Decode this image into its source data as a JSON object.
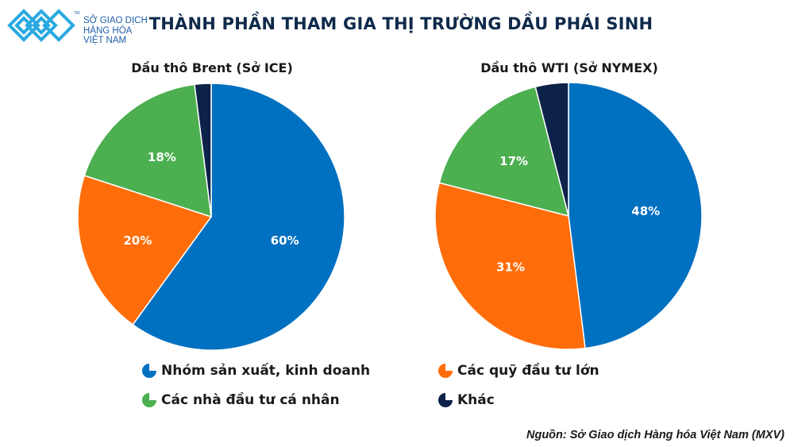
{
  "logo": {
    "lines": [
      "SỞ GIAO DỊCH",
      "HÀNG HÓA",
      "VIỆT NAM"
    ],
    "tm": "TM"
  },
  "title": "THÀNH PHẦN THAM GIA THỊ TRƯỜNG DẦU PHÁI SINH",
  "source": "Nguồn: Sở Giao dịch Hàng hóa Việt Nam (MXV)",
  "colors": {
    "producers": "#0070c0",
    "funds": "#ff6d0a",
    "individuals": "#4caf50",
    "other": "#0d2248"
  },
  "legend": [
    {
      "key": "producers",
      "label": "Nhóm sản xuất, kinh doanh"
    },
    {
      "key": "funds",
      "label": "Các quỹ đầu tư lớn"
    },
    {
      "key": "individuals",
      "label": "Các nhà đầu tư cá nhân"
    },
    {
      "key": "other",
      "label": "Khác"
    }
  ],
  "chart_data": [
    {
      "type": "pie",
      "title": "Dầu thô Brent (Sở ICE)",
      "categories": [
        "Nhóm sản xuất, kinh doanh",
        "Các quỹ đầu tư lớn",
        "Các nhà đầu tư cá nhân",
        "Khác"
      ],
      "values": [
        60,
        20,
        18,
        2
      ],
      "labels": [
        "60%",
        "20%",
        "18%",
        ""
      ],
      "start_angle": "12 o'clock, clockwise"
    },
    {
      "type": "pie",
      "title": "Dầu thô WTI (Sở NYMEX)",
      "categories": [
        "Nhóm sản xuất, kinh doanh",
        "Các quỹ đầu tư lớn",
        "Các nhà đầu tư cá nhân",
        "Khác"
      ],
      "values": [
        48,
        31,
        17,
        4
      ],
      "labels": [
        "48%",
        "31%",
        "17%",
        ""
      ],
      "start_angle": "12 o'clock, clockwise"
    }
  ]
}
